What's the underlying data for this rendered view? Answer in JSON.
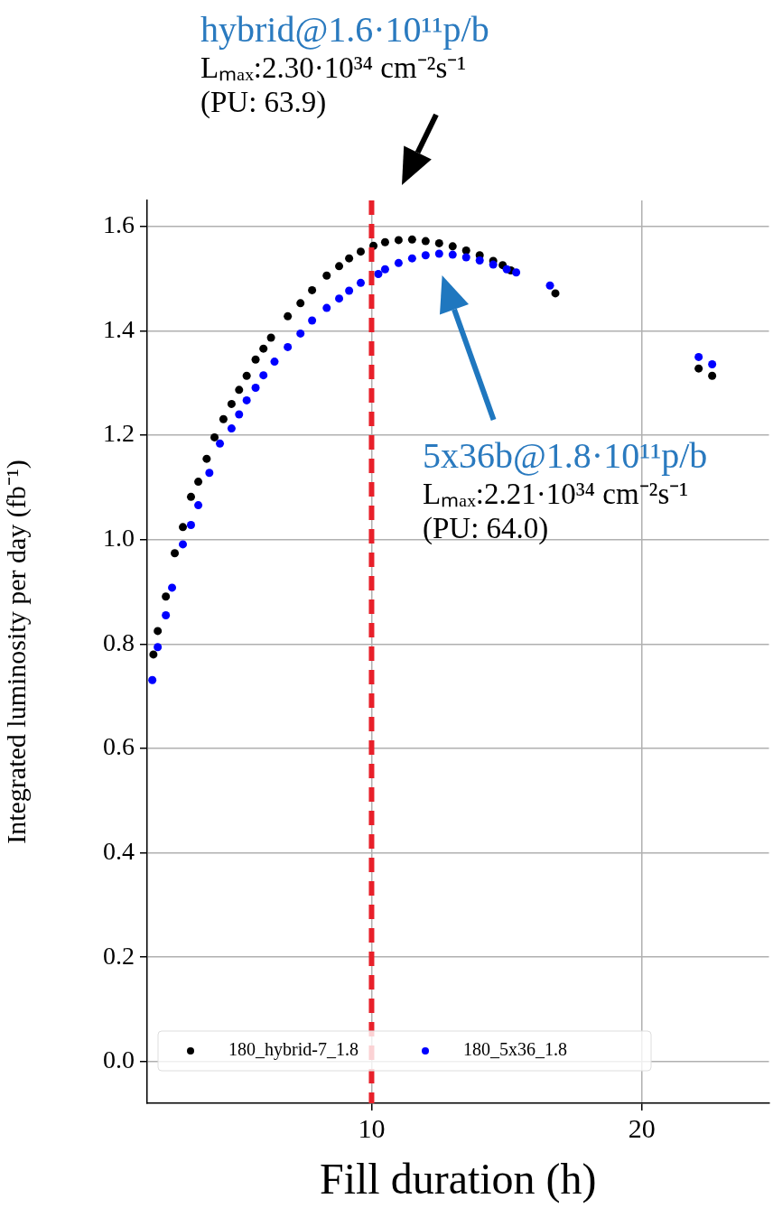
{
  "chart_data": {
    "type": "scatter",
    "xlabel": "Fill duration (h)",
    "ylabel": "Integrated luminosity per day (fb⁻¹)",
    "xlim": [
      1.7,
      24.7
    ],
    "ylim": [
      -0.08,
      1.65
    ],
    "xticks": [
      10,
      20
    ],
    "yticks": [
      {
        "value": 0,
        "label": "0.0"
      },
      0.2,
      0.4,
      0.6,
      0.8,
      {
        "value": 1,
        "label": "1.0"
      },
      1.2,
      1.4,
      1.6
    ],
    "grid": true,
    "legend": "bottom left",
    "marker": "circle",
    "series": [
      {
        "name": "180_hybrid-7_1.8",
        "color": "#000000",
        "x": [
          1.93,
          2.09,
          2.39,
          2.72,
          3.02,
          3.32,
          3.59,
          3.9,
          4.19,
          4.52,
          4.82,
          5.1,
          5.38,
          5.71,
          6.0,
          6.28,
          6.9,
          7.37,
          7.8,
          8.34,
          8.8,
          9.17,
          9.6,
          10.07,
          10.5,
          11.0,
          11.5,
          12.0,
          12.5,
          13.0,
          13.5,
          14.0,
          14.5,
          14.85,
          15.15,
          16.8,
          22.1,
          22.6
        ],
        "values": [
          0.78,
          0.825,
          0.891,
          0.974,
          1.024,
          1.082,
          1.111,
          1.155,
          1.196,
          1.231,
          1.26,
          1.287,
          1.314,
          1.345,
          1.366,
          1.387,
          1.428,
          1.453,
          1.478,
          1.506,
          1.524,
          1.539,
          1.552,
          1.563,
          1.57,
          1.574,
          1.575,
          1.572,
          1.568,
          1.562,
          1.554,
          1.545,
          1.534,
          1.526,
          1.516,
          1.472,
          1.328,
          1.314
        ]
      },
      {
        "name": "180_5x36_1.8",
        "color": "#0000ff",
        "x": [
          1.89,
          2.09,
          2.39,
          2.62,
          3.02,
          3.32,
          3.59,
          4.0,
          4.39,
          4.82,
          5.1,
          5.38,
          5.71,
          6.0,
          6.41,
          6.9,
          7.37,
          7.8,
          8.34,
          8.8,
          9.17,
          9.6,
          10.25,
          10.5,
          11.0,
          11.5,
          12.0,
          12.5,
          13.0,
          13.5,
          14.0,
          14.5,
          15.0,
          15.35,
          16.6,
          22.1,
          22.6
        ],
        "values": [
          0.731,
          0.794,
          0.855,
          0.908,
          0.991,
          1.028,
          1.066,
          1.128,
          1.184,
          1.213,
          1.24,
          1.267,
          1.291,
          1.315,
          1.341,
          1.369,
          1.395,
          1.42,
          1.444,
          1.462,
          1.477,
          1.492,
          1.509,
          1.518,
          1.53,
          1.539,
          1.545,
          1.548,
          1.546,
          1.541,
          1.535,
          1.527,
          1.518,
          1.512,
          1.487,
          1.35,
          1.336
        ]
      }
    ],
    "ref_lines": [
      {
        "axis": "x",
        "value": 10,
        "color": "#e8202a",
        "line_style": "dashed"
      }
    ],
    "annotations": [
      "hybrid@1.6·10¹¹p/b\nLₘₐₓ:2.30·10³⁴ cm⁻²s⁻¹\n(PU: 63.9)",
      "5x36b@1.8·10¹¹p/b\nLₘₐₓ:2.21·10³⁴ cm⁻²s⁻¹\n(PU: 64.0)"
    ]
  }
}
